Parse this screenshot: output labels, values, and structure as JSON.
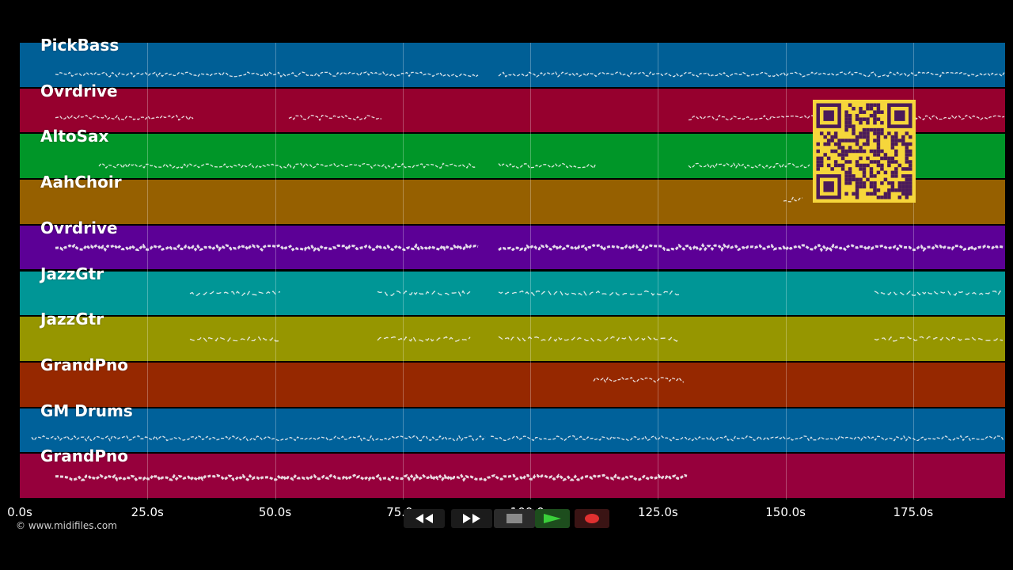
{
  "tracks": [
    {
      "name": "PickBass",
      "color": "#005f96"
    },
    {
      "name": "Ovrdrive",
      "color": "#96002e"
    },
    {
      "name": "AltoSax",
      "color": "#009628"
    },
    {
      "name": "AahChoir",
      "color": "#966000"
    },
    {
      "name": "Ovrdrive",
      "color": "#5c0096"
    },
    {
      "name": "JazzGtr",
      "color": "#009696"
    },
    {
      "name": "JazzGtr",
      "color": "#969600"
    },
    {
      "name": "GrandPno",
      "color": "#962800"
    },
    {
      "name": "GM Drums",
      "color": "#00619a"
    },
    {
      "name": "GrandPno",
      "color": "#96003c"
    }
  ],
  "timeline": {
    "ticks": [
      "0.0s",
      "25.0s",
      "50.0s",
      "75.0s",
      "100.0s",
      "125.0s",
      "150.0s",
      "175.0s"
    ],
    "max_seconds": 193
  },
  "footer": {
    "copyright": "© www.midifiles.com"
  },
  "transport": {
    "rewind_icon": "rewind-icon",
    "fast_forward_icon": "fast-forward-icon",
    "stop_icon": "stop-icon",
    "play_icon": "play-icon",
    "record_icon": "record-icon"
  },
  "overlay": {
    "qr_code": "qr-code-icon"
  }
}
